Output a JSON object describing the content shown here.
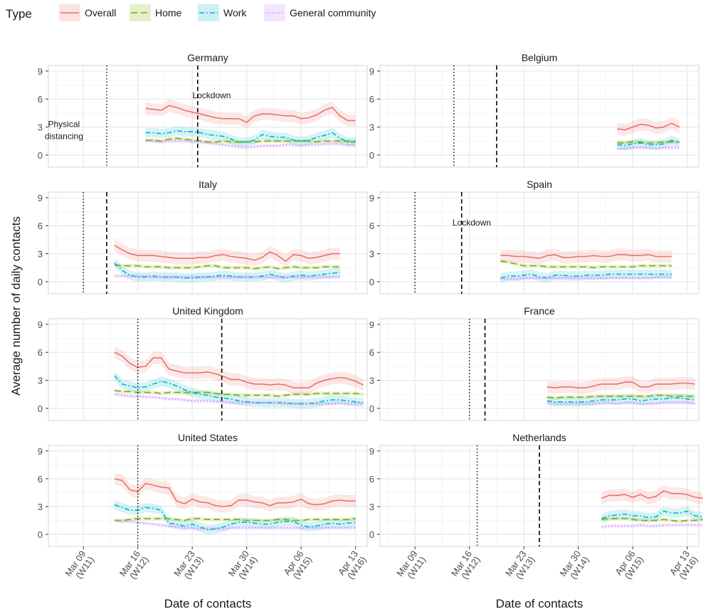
{
  "chart_data": {
    "type": "line",
    "legend": {
      "title": "Type",
      "position": "top-left",
      "entries": [
        {
          "name": "Overall",
          "color": "#e8736c",
          "dash": "solid"
        },
        {
          "name": "Home",
          "color": "#7cae00",
          "dash": "longdash"
        },
        {
          "name": "Work",
          "color": "#00b5c8",
          "dash": "dotdash"
        },
        {
          "name": "General community",
          "color": "#c77cff",
          "dash": "dotted"
        }
      ]
    },
    "ylabel": "Average number of daily contacts",
    "xlabel": "Date of contacts",
    "ylim": [
      -1.3,
      9.6
    ],
    "yticks": [
      0,
      3,
      6,
      9
    ],
    "x_unit": "days since Mar 09",
    "xlim": [
      -4.5,
      36.5
    ],
    "xticks": [
      {
        "pos": 0,
        "line1": "Mar 09",
        "line2": "(W11)"
      },
      {
        "pos": 7,
        "line1": "Mar 16",
        "line2": "(W12)"
      },
      {
        "pos": 14,
        "line1": "Mar 23",
        "line2": "(W13)"
      },
      {
        "pos": 21,
        "line1": "Mar 30",
        "line2": "(W14)"
      },
      {
        "pos": 28,
        "line1": "Apr 06",
        "line2": "(W15)"
      },
      {
        "pos": 35,
        "line1": "Apr 13",
        "line2": "(W16)"
      }
    ],
    "grid": true,
    "panels": [
      {
        "country": "Germany",
        "distancing": 3,
        "lockdown": 14.7,
        "annotations": [
          {
            "text": "Lockdown",
            "x": 16.5,
            "y": 6.1
          },
          {
            "text": "Physical",
            "x": -2.5,
            "y": 3.0
          },
          {
            "text": "distancing",
            "x": -2.5,
            "y": 1.7
          }
        ],
        "x_start": 8,
        "series": {
          "overall": [
            5.0,
            4.9,
            4.8,
            5.3,
            5.1,
            4.8,
            4.6,
            4.4,
            4.2,
            4.0,
            3.9,
            3.9,
            3.9,
            3.5,
            4.2,
            4.4,
            4.4,
            4.3,
            4.2,
            4.2,
            3.9,
            4.0,
            4.3,
            4.8,
            5.1,
            4.2,
            3.7,
            3.7
          ],
          "home": [
            1.6,
            1.6,
            1.5,
            1.7,
            1.8,
            1.7,
            1.6,
            1.5,
            1.4,
            1.4,
            1.5,
            1.4,
            1.4,
            1.4,
            1.4,
            1.5,
            1.5,
            1.5,
            1.5,
            1.5,
            1.5,
            1.5,
            1.4,
            1.5,
            1.5,
            1.5,
            1.5,
            1.5
          ],
          "work": [
            2.4,
            2.4,
            2.3,
            2.4,
            2.6,
            2.5,
            2.5,
            2.4,
            2.2,
            2.1,
            2.0,
            1.7,
            1.4,
            1.4,
            1.6,
            2.2,
            2.0,
            1.9,
            1.9,
            1.6,
            1.5,
            1.6,
            1.9,
            2.1,
            2.4,
            1.8,
            1.4,
            1.4
          ],
          "community": [
            1.5,
            1.5,
            1.4,
            1.5,
            1.5,
            1.5,
            1.4,
            1.4,
            1.3,
            1.2,
            1.1,
            1.0,
            0.9,
            0.8,
            0.9,
            1.0,
            1.0,
            1.0,
            1.1,
            1.1,
            1.0,
            1.1,
            1.1,
            1.2,
            1.2,
            1.2,
            1.1,
            1.1
          ]
        }
      },
      {
        "country": "Belgium",
        "distancing": 5,
        "lockdown": 10.5,
        "annotations": [],
        "x_start": 26,
        "series": {
          "overall": [
            2.8,
            2.7,
            3.0,
            3.3,
            3.2,
            2.9,
            3.0,
            3.4,
            3.0
          ],
          "home": [
            1.3,
            1.3,
            1.4,
            1.4,
            1.3,
            1.3,
            1.4,
            1.4,
            1.4
          ],
          "work": [
            1.1,
            1.0,
            1.2,
            1.3,
            1.1,
            1.1,
            1.2,
            1.6,
            1.3
          ],
          "community": [
            0.7,
            0.7,
            0.8,
            0.8,
            0.8,
            0.7,
            0.8,
            0.8,
            0.8
          ]
        }
      },
      {
        "country": "Italy",
        "distancing": 0,
        "lockdown": 3,
        "annotations": [],
        "x_start": 4,
        "series": {
          "overall": [
            3.9,
            3.4,
            3.0,
            2.8,
            2.8,
            2.8,
            2.7,
            2.6,
            2.5,
            2.5,
            2.5,
            2.6,
            2.6,
            2.8,
            2.9,
            2.7,
            2.6,
            2.5,
            2.3,
            2.6,
            3.2,
            2.8,
            2.2,
            2.9,
            2.8,
            2.5,
            2.6,
            2.8,
            3.0,
            3.0
          ],
          "home": [
            1.8,
            1.7,
            1.7,
            1.7,
            1.6,
            1.6,
            1.6,
            1.5,
            1.5,
            1.5,
            1.5,
            1.6,
            1.7,
            1.7,
            1.5,
            1.5,
            1.5,
            1.5,
            1.4,
            1.5,
            1.6,
            1.4,
            1.5,
            1.6,
            1.5,
            1.5,
            1.5,
            1.6,
            1.6,
            1.6
          ],
          "work": [
            2.0,
            1.2,
            0.7,
            0.5,
            0.5,
            0.6,
            0.5,
            0.5,
            0.5,
            0.4,
            0.4,
            0.5,
            0.5,
            0.6,
            0.7,
            0.6,
            0.5,
            0.5,
            0.5,
            0.6,
            0.8,
            0.6,
            0.4,
            0.6,
            0.7,
            0.6,
            0.7,
            0.8,
            0.9,
            1.0
          ],
          "community": [
            0.6,
            0.6,
            0.6,
            0.6,
            0.6,
            0.5,
            0.5,
            0.5,
            0.5,
            0.5,
            0.5,
            0.5,
            0.5,
            0.5,
            0.5,
            0.5,
            0.5,
            0.5,
            0.5,
            0.5,
            0.5,
            0.5,
            0.5,
            0.5,
            0.5,
            0.5,
            0.5,
            0.5,
            0.5,
            0.5
          ]
        }
      },
      {
        "country": "Spain",
        "distancing": 0,
        "lockdown": 6,
        "annotations": [
          {
            "text": "Lockdown",
            "x": 7.3,
            "y": 6.0
          }
        ],
        "x_start": 11,
        "series": {
          "overall": [
            2.8,
            2.8,
            2.7,
            2.7,
            2.6,
            2.5,
            2.8,
            2.9,
            2.6,
            2.6,
            2.7,
            2.7,
            2.8,
            2.7,
            2.7,
            2.9,
            2.9,
            2.8,
            2.8,
            2.9,
            2.7,
            2.7,
            2.7
          ],
          "home": [
            2.2,
            2.1,
            1.9,
            1.7,
            1.7,
            1.7,
            1.6,
            1.6,
            1.6,
            1.6,
            1.6,
            1.6,
            1.5,
            1.6,
            1.6,
            1.6,
            1.6,
            1.6,
            1.7,
            1.7,
            1.7,
            1.7,
            1.7
          ],
          "work": [
            0.4,
            0.6,
            0.6,
            0.7,
            0.8,
            0.5,
            0.4,
            0.7,
            0.7,
            0.6,
            0.6,
            0.7,
            0.7,
            0.7,
            0.8,
            0.8,
            0.8,
            0.8,
            0.8,
            0.8,
            0.8,
            0.8,
            0.8
          ],
          "community": [
            0.3,
            0.3,
            0.3,
            0.4,
            0.4,
            0.4,
            0.4,
            0.4,
            0.4,
            0.4,
            0.4,
            0.4,
            0.4,
            0.4,
            0.4,
            0.4,
            0.4,
            0.4,
            0.4,
            0.4,
            0.5,
            0.5,
            0.5
          ]
        }
      },
      {
        "country": "United Kingdom",
        "distancing": 7,
        "lockdown": 17.8,
        "annotations": [],
        "x_start": 4,
        "series": {
          "overall": [
            6.0,
            5.6,
            4.8,
            4.4,
            4.5,
            5.4,
            5.4,
            4.2,
            4.0,
            3.8,
            3.8,
            3.8,
            3.9,
            3.7,
            3.4,
            3.1,
            3.1,
            2.8,
            2.6,
            2.6,
            2.5,
            2.6,
            2.5,
            2.2,
            2.2,
            2.2,
            2.7,
            3.0,
            3.2,
            3.3,
            3.2,
            2.9,
            2.5
          ],
          "home": [
            1.9,
            1.8,
            1.8,
            1.7,
            1.7,
            1.7,
            1.6,
            1.7,
            1.7,
            1.7,
            1.7,
            1.7,
            1.7,
            1.6,
            1.5,
            1.5,
            1.4,
            1.4,
            1.4,
            1.4,
            1.4,
            1.3,
            1.4,
            1.5,
            1.5,
            1.5,
            1.6,
            1.6,
            1.6,
            1.6,
            1.6,
            1.6,
            1.5
          ],
          "work": [
            3.5,
            2.6,
            2.4,
            2.2,
            2.3,
            2.6,
            2.9,
            2.7,
            2.4,
            2.0,
            1.7,
            1.5,
            1.4,
            1.2,
            1.1,
            1.0,
            0.8,
            0.7,
            0.6,
            0.6,
            0.6,
            0.6,
            0.6,
            0.5,
            0.5,
            0.5,
            0.6,
            0.8,
            0.9,
            0.9,
            0.8,
            0.7,
            0.6
          ],
          "community": [
            1.5,
            1.4,
            1.3,
            1.3,
            1.2,
            1.2,
            1.1,
            1.0,
            1.0,
            0.9,
            0.8,
            0.8,
            0.8,
            0.7,
            0.7,
            0.6,
            0.6,
            0.6,
            0.6,
            0.6,
            0.6,
            0.6,
            0.5,
            0.5,
            0.5,
            0.5,
            0.5,
            0.5,
            0.5,
            0.6,
            0.5,
            0.5,
            0.5
          ]
        }
      },
      {
        "country": "France",
        "distancing": 7,
        "lockdown": 9,
        "annotations": [],
        "x_start": 17,
        "series": {
          "overall": [
            2.3,
            2.2,
            2.3,
            2.3,
            2.2,
            2.2,
            2.4,
            2.6,
            2.6,
            2.6,
            2.8,
            2.8,
            2.3,
            2.3,
            2.6,
            2.6,
            2.6,
            2.7,
            2.7,
            2.6
          ],
          "home": [
            1.2,
            1.1,
            1.2,
            1.2,
            1.2,
            1.2,
            1.3,
            1.3,
            1.3,
            1.3,
            1.3,
            1.3,
            1.3,
            1.3,
            1.4,
            1.4,
            1.3,
            1.3,
            1.3,
            1.3
          ],
          "work": [
            0.8,
            0.7,
            0.7,
            0.7,
            0.7,
            0.7,
            0.8,
            0.9,
            0.9,
            0.9,
            1.0,
            1.0,
            0.8,
            0.9,
            1.0,
            1.0,
            1.1,
            1.1,
            1.0,
            0.9
          ],
          "community": [
            0.6,
            0.5,
            0.5,
            0.5,
            0.5,
            0.5,
            0.5,
            0.6,
            0.6,
            0.5,
            0.6,
            0.6,
            0.5,
            0.5,
            0.5,
            0.6,
            0.6,
            0.6,
            0.6,
            0.5
          ]
        }
      },
      {
        "country": "United States",
        "distancing": 7,
        "lockdown": null,
        "annotations": [],
        "x_start": 4,
        "series": {
          "overall": [
            6.0,
            5.8,
            4.8,
            4.6,
            5.5,
            5.3,
            5.1,
            5.0,
            3.6,
            3.3,
            3.8,
            3.5,
            3.4,
            3.1,
            3.0,
            3.1,
            3.7,
            3.7,
            3.5,
            3.4,
            3.1,
            3.4,
            3.4,
            3.5,
            3.8,
            3.3,
            3.2,
            3.3,
            3.6,
            3.7,
            3.6,
            3.6
          ],
          "home": [
            1.5,
            1.5,
            1.6,
            1.7,
            1.7,
            1.7,
            1.7,
            1.7,
            1.6,
            1.5,
            1.7,
            1.7,
            1.6,
            1.6,
            1.6,
            1.6,
            1.6,
            1.5,
            1.5,
            1.5,
            1.5,
            1.6,
            1.6,
            1.5,
            1.5,
            1.6,
            1.6,
            1.6,
            1.6,
            1.6,
            1.6,
            1.7
          ],
          "work": [
            3.2,
            2.9,
            2.6,
            2.6,
            2.9,
            2.8,
            2.6,
            1.2,
            1.1,
            0.9,
            1.1,
            0.8,
            0.5,
            0.6,
            0.8,
            1.1,
            1.3,
            1.3,
            1.2,
            1.1,
            1.1,
            1.3,
            1.4,
            1.4,
            1.0,
            0.8,
            0.9,
            1.1,
            1.2,
            1.1,
            1.2,
            1.3
          ],
          "community": [
            1.5,
            1.4,
            1.4,
            1.3,
            1.2,
            1.1,
            1.0,
            0.9,
            0.8,
            0.7,
            0.7,
            0.6,
            0.6,
            0.6,
            0.6,
            0.7,
            0.7,
            0.7,
            0.7,
            0.7,
            0.7,
            0.7,
            0.7,
            0.7,
            0.7,
            0.7,
            0.7,
            0.7,
            0.7,
            0.7,
            0.7,
            0.7
          ]
        }
      },
      {
        "country": "Netherlands",
        "distancing": 8,
        "lockdown": 16,
        "annotations": [],
        "x_start": 24,
        "series": {
          "overall": [
            3.9,
            4.2,
            4.2,
            4.3,
            4.0,
            4.3,
            3.9,
            4.1,
            4.7,
            4.4,
            4.4,
            4.3,
            4.0,
            3.9
          ],
          "home": [
            1.6,
            1.7,
            1.7,
            1.7,
            1.6,
            1.5,
            1.5,
            1.5,
            1.6,
            1.5,
            1.4,
            1.5,
            1.5,
            1.6
          ],
          "work": [
            1.7,
            2.0,
            2.1,
            2.2,
            2.0,
            2.0,
            1.8,
            1.9,
            2.5,
            2.3,
            2.3,
            2.5,
            2.0,
            1.9
          ],
          "community": [
            0.8,
            0.9,
            0.9,
            0.9,
            0.9,
            1.0,
            0.9,
            0.9,
            1.0,
            1.0,
            1.0,
            1.0,
            1.0,
            1.0
          ]
        }
      }
    ]
  }
}
